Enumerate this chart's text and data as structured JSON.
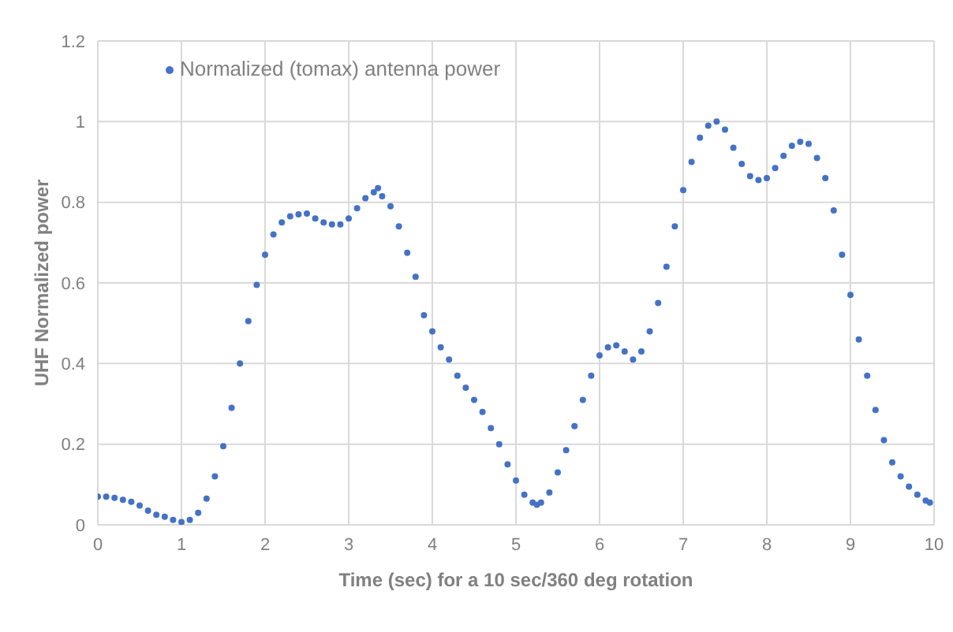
{
  "chart_data": {
    "type": "scatter",
    "xlabel": "Time (sec) for a 10 sec/360 deg rotation",
    "ylabel": "UHF Normalized power",
    "x": [
      0,
      0.1,
      0.2,
      0.3,
      0.4,
      0.5,
      0.6,
      0.7,
      0.8,
      0.9,
      1.0,
      1.1,
      1.2,
      1.3,
      1.4,
      1.5,
      1.6,
      1.7,
      1.8,
      1.9,
      2.0,
      2.1,
      2.2,
      2.3,
      2.4,
      2.5,
      2.6,
      2.7,
      2.8,
      2.9,
      3.0,
      3.1,
      3.2,
      3.3,
      3.35,
      3.4,
      3.5,
      3.6,
      3.7,
      3.8,
      3.9,
      4.0,
      4.1,
      4.2,
      4.3,
      4.4,
      4.5,
      4.6,
      4.7,
      4.8,
      4.9,
      5.0,
      5.1,
      5.2,
      5.25,
      5.3,
      5.4,
      5.5,
      5.6,
      5.7,
      5.8,
      5.9,
      6.0,
      6.1,
      6.2,
      6.3,
      6.4,
      6.5,
      6.6,
      6.7,
      6.8,
      6.9,
      7.0,
      7.1,
      7.2,
      7.3,
      7.4,
      7.5,
      7.6,
      7.7,
      7.8,
      7.9,
      8.0,
      8.1,
      8.2,
      8.3,
      8.4,
      8.5,
      8.6,
      8.7,
      8.8,
      8.9,
      9.0,
      9.1,
      9.2,
      9.3,
      9.4,
      9.5,
      9.6,
      9.7,
      9.8,
      9.9,
      9.95
    ],
    "series": [
      {
        "name": "Normalized (tomax) antenna power",
        "color": "#4472c4",
        "values": [
          0.07,
          0.07,
          0.067,
          0.062,
          0.057,
          0.048,
          0.035,
          0.025,
          0.02,
          0.012,
          0.007,
          0.012,
          0.03,
          0.065,
          0.12,
          0.195,
          0.29,
          0.4,
          0.505,
          0.595,
          0.67,
          0.72,
          0.75,
          0.765,
          0.77,
          0.772,
          0.76,
          0.75,
          0.745,
          0.745,
          0.76,
          0.785,
          0.81,
          0.825,
          0.835,
          0.815,
          0.79,
          0.74,
          0.675,
          0.615,
          0.52,
          0.48,
          0.44,
          0.41,
          0.37,
          0.34,
          0.31,
          0.28,
          0.24,
          0.2,
          0.15,
          0.11,
          0.075,
          0.055,
          0.05,
          0.055,
          0.08,
          0.13,
          0.185,
          0.245,
          0.31,
          0.37,
          0.42,
          0.44,
          0.445,
          0.43,
          0.41,
          0.43,
          0.48,
          0.55,
          0.64,
          0.74,
          0.83,
          0.9,
          0.96,
          0.99,
          1.0,
          0.98,
          0.935,
          0.895,
          0.865,
          0.855,
          0.86,
          0.885,
          0.915,
          0.94,
          0.95,
          0.945,
          0.91,
          0.86,
          0.78,
          0.67,
          0.57,
          0.46,
          0.37,
          0.285,
          0.21,
          0.155,
          0.12,
          0.095,
          0.075,
          0.06,
          0.055
        ]
      }
    ],
    "xlim": [
      0,
      10
    ],
    "xticks": [
      0,
      1,
      2,
      3,
      4,
      5,
      6,
      7,
      8,
      9,
      10
    ],
    "ylim": [
      0,
      1.2
    ],
    "yticks": [
      0,
      0.2,
      0.4,
      0.6,
      0.8,
      1,
      1.2
    ],
    "grid": true,
    "legend": "top left",
    "marker": "circle"
  }
}
